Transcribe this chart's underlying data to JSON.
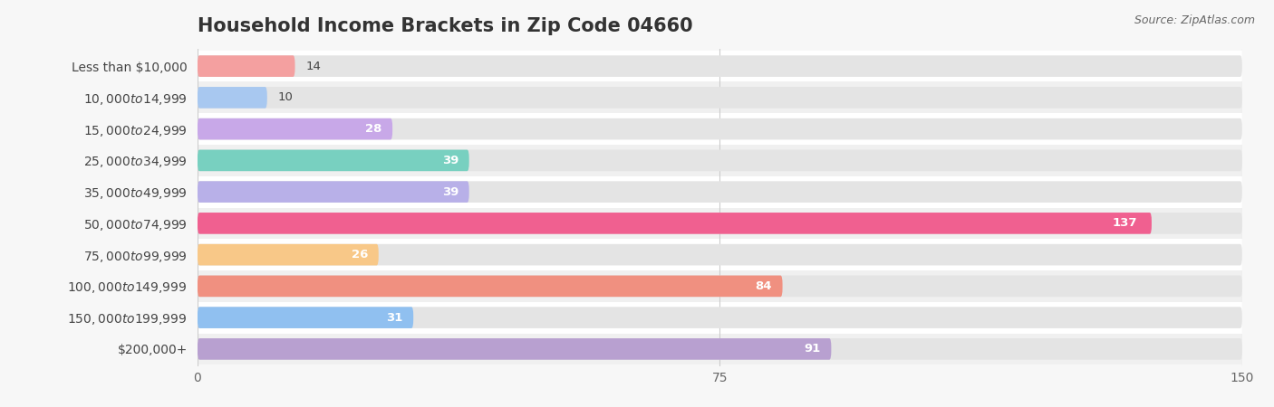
{
  "title": "Household Income Brackets in Zip Code 04660",
  "source": "Source: ZipAtlas.com",
  "categories": [
    "Less than $10,000",
    "$10,000 to $14,999",
    "$15,000 to $24,999",
    "$25,000 to $34,999",
    "$35,000 to $49,999",
    "$50,000 to $74,999",
    "$75,000 to $99,999",
    "$100,000 to $149,999",
    "$150,000 to $199,999",
    "$200,000+"
  ],
  "values": [
    14,
    10,
    28,
    39,
    39,
    137,
    26,
    84,
    31,
    91
  ],
  "bar_colors": [
    "#F4A0A0",
    "#A8C8F0",
    "#C8A8E8",
    "#78D0C0",
    "#B8B0E8",
    "#F06090",
    "#F8C888",
    "#F09080",
    "#90C0F0",
    "#B8A0D0"
  ],
  "row_bg_colors": [
    "#ffffff",
    "#f0f0f0"
  ],
  "background_color": "#f7f7f7",
  "bar_bg_color": "#e4e4e4",
  "xlim": [
    0,
    150
  ],
  "xticks": [
    0,
    75,
    150
  ],
  "title_fontsize": 15,
  "label_fontsize": 10,
  "value_fontsize": 9.5
}
